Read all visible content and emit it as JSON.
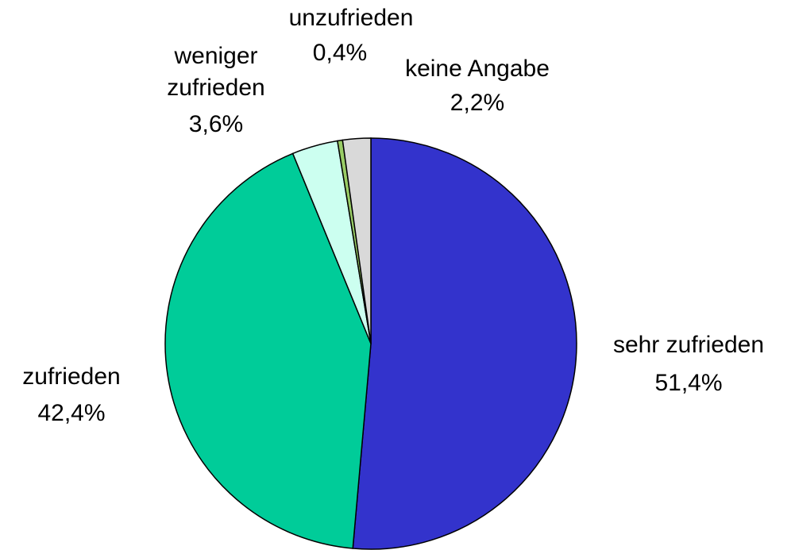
{
  "chart_data": {
    "type": "pie",
    "categories": [
      "sehr zufrieden",
      "zufrieden",
      "weniger zufrieden",
      "unzufrieden",
      "keine Angabe"
    ],
    "values": [
      51.4,
      42.4,
      3.6,
      0.4,
      2.2
    ],
    "value_labels": [
      "51,4%",
      "42,4%",
      "3,6%",
      "0,4%",
      "2,2%"
    ],
    "colors": [
      "#3333cc",
      "#00cc99",
      "#ccfff0",
      "#99cc66",
      "#d9d9d9"
    ]
  }
}
